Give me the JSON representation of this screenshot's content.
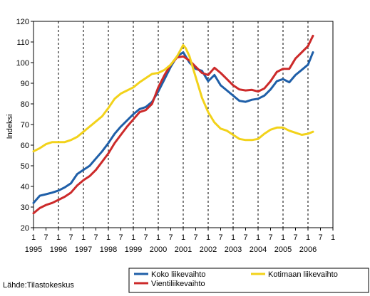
{
  "source": "Lähde:Tilastokeskus",
  "chart_data": {
    "type": "line",
    "ylabel": "Indeksi",
    "ylim": [
      20,
      120
    ],
    "yticks": [
      20,
      30,
      40,
      50,
      60,
      70,
      80,
      90,
      100,
      110,
      120
    ],
    "xlim": [
      1995.0,
      2007.0
    ],
    "month_tick_labels": [
      "1",
      "7"
    ],
    "years": [
      "1995",
      "1996",
      "1997",
      "1998",
      "1999",
      "2000",
      "2001",
      "2002",
      "2003",
      "2004",
      "2005",
      "2006"
    ],
    "grid": "vertical-dashed-at-years",
    "legend_position": "bottom",
    "series": [
      {
        "name": "Koko liikevaihto",
        "color": "#1f5fa8",
        "points": [
          [
            1995.0,
            32
          ],
          [
            1995.25,
            35.5
          ],
          [
            1995.5,
            36.2
          ],
          [
            1995.75,
            37
          ],
          [
            1996.0,
            38
          ],
          [
            1996.25,
            39.5
          ],
          [
            1996.5,
            41.5
          ],
          [
            1996.75,
            46
          ],
          [
            1997.0,
            48
          ],
          [
            1997.25,
            50
          ],
          [
            1997.5,
            53.5
          ],
          [
            1997.75,
            57
          ],
          [
            1998.0,
            61
          ],
          [
            1998.25,
            65.5
          ],
          [
            1998.5,
            69
          ],
          [
            1998.75,
            72
          ],
          [
            1999.0,
            75
          ],
          [
            1999.25,
            77.5
          ],
          [
            1999.5,
            78.5
          ],
          [
            1999.75,
            81
          ],
          [
            2000.0,
            86
          ],
          [
            2000.25,
            92
          ],
          [
            2000.5,
            98
          ],
          [
            2000.75,
            103
          ],
          [
            2001.0,
            105
          ],
          [
            2001.25,
            100
          ],
          [
            2001.5,
            97
          ],
          [
            2001.75,
            96
          ],
          [
            2002.0,
            91
          ],
          [
            2002.25,
            94
          ],
          [
            2002.5,
            89
          ],
          [
            2002.75,
            86.5
          ],
          [
            2003.0,
            84
          ],
          [
            2003.25,
            81.5
          ],
          [
            2003.5,
            81
          ],
          [
            2003.75,
            82
          ],
          [
            2004.0,
            82.5
          ],
          [
            2004.25,
            84
          ],
          [
            2004.5,
            87
          ],
          [
            2004.75,
            91
          ],
          [
            2005.0,
            92
          ],
          [
            2005.25,
            90.5
          ],
          [
            2005.5,
            94
          ],
          [
            2005.75,
            96.5
          ],
          [
            2006.0,
            99
          ],
          [
            2006.2,
            105
          ]
        ]
      },
      {
        "name": "Vientiliikevaihto",
        "color": "#cc2a2a",
        "points": [
          [
            1995.0,
            27
          ],
          [
            1995.25,
            29.5
          ],
          [
            1995.5,
            31
          ],
          [
            1995.75,
            32
          ],
          [
            1996.0,
            33.5
          ],
          [
            1996.25,
            35
          ],
          [
            1996.5,
            37
          ],
          [
            1996.75,
            40.5
          ],
          [
            1997.0,
            43
          ],
          [
            1997.25,
            45
          ],
          [
            1997.5,
            48
          ],
          [
            1997.75,
            52
          ],
          [
            1998.0,
            56
          ],
          [
            1998.25,
            61
          ],
          [
            1998.5,
            65
          ],
          [
            1998.75,
            69
          ],
          [
            1999.0,
            72.5
          ],
          [
            1999.25,
            76
          ],
          [
            1999.5,
            77
          ],
          [
            1999.75,
            80
          ],
          [
            2000.0,
            88
          ],
          [
            2000.25,
            94
          ],
          [
            2000.5,
            99
          ],
          [
            2000.75,
            102.5
          ],
          [
            2001.0,
            103
          ],
          [
            2001.25,
            101
          ],
          [
            2001.5,
            98
          ],
          [
            2001.75,
            95
          ],
          [
            2002.0,
            94
          ],
          [
            2002.25,
            97.5
          ],
          [
            2002.5,
            95
          ],
          [
            2002.75,
            92
          ],
          [
            2003.0,
            89
          ],
          [
            2003.25,
            87
          ],
          [
            2003.5,
            86.5
          ],
          [
            2003.75,
            86.8
          ],
          [
            2004.0,
            86
          ],
          [
            2004.25,
            87.5
          ],
          [
            2004.5,
            91
          ],
          [
            2004.75,
            95.5
          ],
          [
            2005.0,
            97
          ],
          [
            2005.25,
            97
          ],
          [
            2005.5,
            102
          ],
          [
            2005.75,
            105
          ],
          [
            2006.0,
            108
          ],
          [
            2006.2,
            113
          ]
        ]
      },
      {
        "name": "Kotimaan liikevaihto",
        "color": "#f2d21a",
        "points": [
          [
            1995.0,
            57
          ],
          [
            1995.25,
            58.5
          ],
          [
            1995.5,
            60.5
          ],
          [
            1995.75,
            61.5
          ],
          [
            1996.0,
            61.5
          ],
          [
            1996.25,
            61.5
          ],
          [
            1996.5,
            62.5
          ],
          [
            1996.75,
            64
          ],
          [
            1997.0,
            66.5
          ],
          [
            1997.25,
            69
          ],
          [
            1997.5,
            71.5
          ],
          [
            1997.75,
            74
          ],
          [
            1998.0,
            78
          ],
          [
            1998.25,
            82.5
          ],
          [
            1998.5,
            85
          ],
          [
            1998.75,
            86.5
          ],
          [
            1999.0,
            88
          ],
          [
            1999.25,
            90.5
          ],
          [
            1999.5,
            92.5
          ],
          [
            1999.75,
            94.5
          ],
          [
            2000.0,
            95
          ],
          [
            2000.25,
            96.5
          ],
          [
            2000.5,
            99
          ],
          [
            2000.75,
            103
          ],
          [
            2001.0,
            108.5
          ],
          [
            2001.1,
            107
          ],
          [
            2001.25,
            103
          ],
          [
            2001.5,
            93
          ],
          [
            2001.75,
            83
          ],
          [
            2002.0,
            76
          ],
          [
            2002.25,
            71
          ],
          [
            2002.5,
            68
          ],
          [
            2002.75,
            67
          ],
          [
            2003.0,
            65
          ],
          [
            2003.25,
            63
          ],
          [
            2003.5,
            62.5
          ],
          [
            2003.75,
            62.5
          ],
          [
            2004.0,
            63
          ],
          [
            2004.25,
            65.5
          ],
          [
            2004.5,
            67.5
          ],
          [
            2004.75,
            68.5
          ],
          [
            2005.0,
            68.5
          ],
          [
            2005.25,
            67
          ],
          [
            2005.5,
            66
          ],
          [
            2005.75,
            65
          ],
          [
            2006.0,
            65.5
          ],
          [
            2006.2,
            66.5
          ]
        ]
      }
    ]
  }
}
